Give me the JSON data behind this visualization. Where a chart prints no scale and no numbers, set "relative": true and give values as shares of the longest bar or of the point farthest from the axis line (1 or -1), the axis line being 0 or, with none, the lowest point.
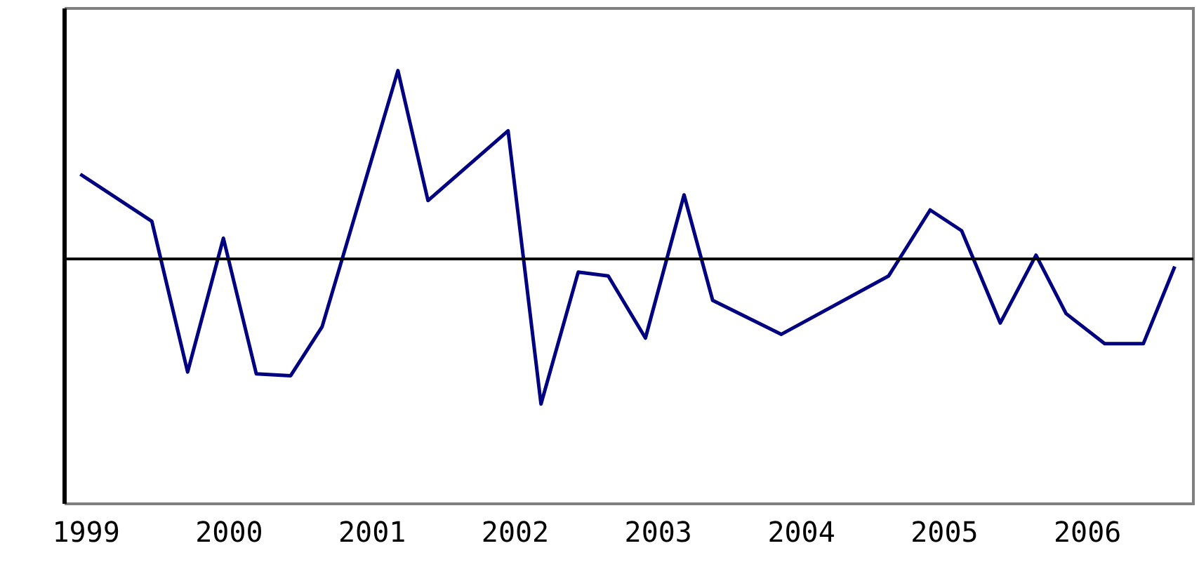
{
  "chart_data": {
    "type": "line",
    "relative": true,
    "color": "#000080",
    "marker": "none",
    "grid": false,
    "legend": false,
    "x": [
      1998.96,
      1999.46,
      1999.71,
      1999.96,
      2000.19,
      2000.43,
      2000.65,
      2001.18,
      2001.39,
      2001.95,
      2002.18,
      2002.44,
      2002.65,
      2002.91,
      2003.18,
      2003.38,
      2003.86,
      2004.61,
      2004.9,
      2005.12,
      2005.39,
      2005.64,
      2005.85,
      2006.12,
      2006.39,
      2006.61
    ],
    "values": [
      0.45,
      0.2,
      -0.6,
      0.11,
      -0.61,
      -0.62,
      -0.36,
      1,
      0.31,
      0.68,
      -0.77,
      -0.07,
      -0.09,
      -0.42,
      0.34,
      -0.22,
      -0.4,
      -0.09,
      0.26,
      0.15,
      -0.34,
      0.02,
      -0.29,
      -0.45,
      -0.45,
      -0.04
    ],
    "xlim": [
      1998.85,
      2006.74
    ],
    "xticks": [
      1999,
      2000,
      2001,
      2002,
      2003,
      2004,
      2005,
      2006
    ]
  }
}
